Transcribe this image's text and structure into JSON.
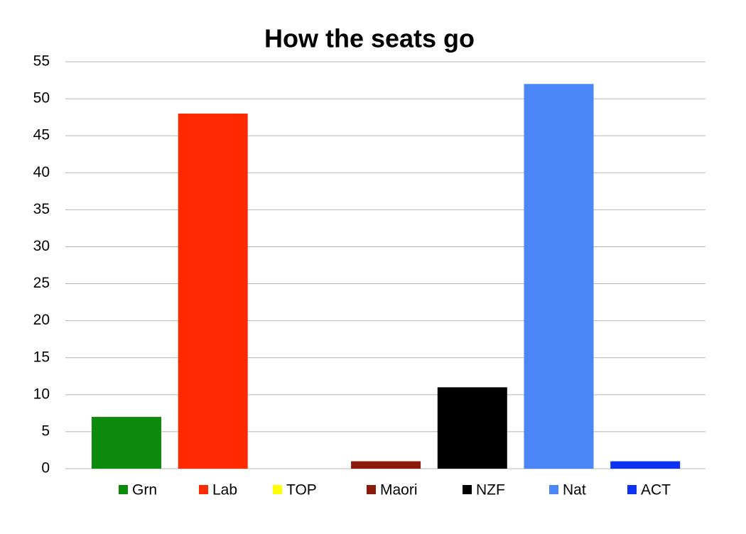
{
  "chart_data": {
    "type": "bar",
    "title": "How the seats go",
    "series": [
      {
        "name": "Grn",
        "color": "#0b8a0b",
        "values": [
          7
        ]
      },
      {
        "name": "Lab",
        "color": "#ff2a00",
        "values": [
          48
        ]
      },
      {
        "name": "TOP",
        "color": "#ffff00",
        "values": [
          0
        ]
      },
      {
        "name": "Maori",
        "color": "#8b1a0a",
        "values": [
          1
        ]
      },
      {
        "name": "NZF",
        "color": "#000000",
        "values": [
          11
        ]
      },
      {
        "name": "Nat",
        "color": "#4a86f5",
        "values": [
          52
        ]
      },
      {
        "name": "ACT",
        "color": "#0b33f0",
        "values": [
          1
        ]
      }
    ],
    "ylim": [
      0,
      55
    ],
    "yticks": [
      0,
      5,
      10,
      15,
      20,
      25,
      30,
      35,
      40,
      45,
      50,
      55
    ],
    "grid": true
  }
}
